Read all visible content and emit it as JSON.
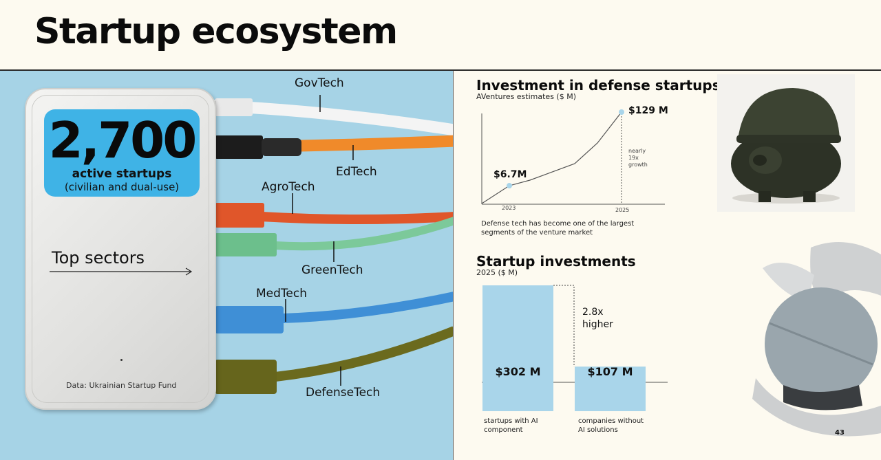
{
  "header": {
    "title": "Startup ecosystem"
  },
  "left": {
    "stat_number": "2,700",
    "stat_label": "active startups",
    "stat_sub": "(civilian and dual-use)",
    "top_sectors": "Top sectors",
    "source": "Data: Ukrainian Startup Fund",
    "sectors": [
      {
        "name": "GovTech",
        "color": "#f2f2f2"
      },
      {
        "name": "EdTech",
        "color": "#f08a2a"
      },
      {
        "name": "AgroTech",
        "color": "#e0562a"
      },
      {
        "name": "GreenTech",
        "color": "#7cc99a"
      },
      {
        "name": "MedTech",
        "color": "#3f8fd6"
      },
      {
        "name": "DefenseTech",
        "color": "#6b6a1e"
      }
    ]
  },
  "chart_data": [
    {
      "type": "line",
      "title": "Investment in defense startups",
      "subtitle": "AVentures estimates ($ M)",
      "x": [
        "2023",
        "2025"
      ],
      "values": [
        6.7,
        129
      ],
      "labels": [
        "$6.7M",
        "$129 M"
      ],
      "annotation": [
        "nearly",
        "19x",
        "growth"
      ],
      "caption": [
        "Defense tech has become one of the largest",
        "segments of the venture market"
      ]
    },
    {
      "type": "bar",
      "title": "Startup investments",
      "subtitle": "2025 ($ M)",
      "categories": [
        [
          "startups with AI",
          "component"
        ],
        [
          "companies without",
          "AI solutions"
        ]
      ],
      "values": [
        302,
        107
      ],
      "labels": [
        "$302 M",
        "$107 M"
      ],
      "annotation": [
        "2.8x",
        "higher"
      ],
      "bar_color": "#a9d5ea"
    }
  ],
  "page": {
    "number": "43"
  }
}
